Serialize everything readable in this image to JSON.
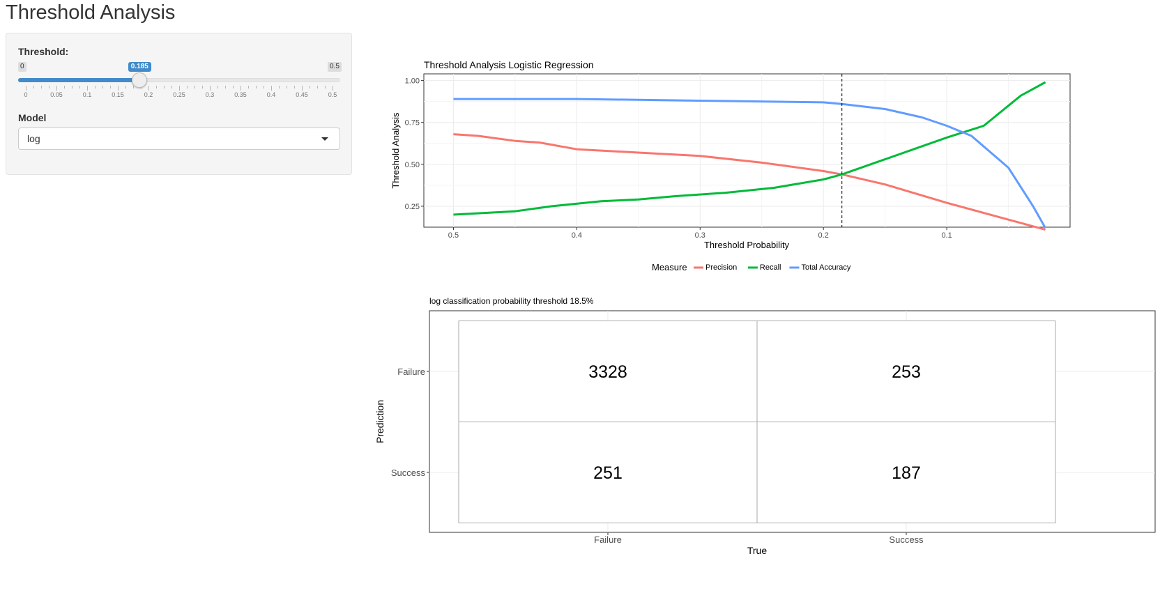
{
  "page": {
    "title": "Threshold Analysis"
  },
  "sidebar": {
    "threshold_label": "Threshold:",
    "slider": {
      "min_label": "0",
      "max_label": "0.5",
      "value_label": "0.185",
      "min": 0,
      "max": 0.5,
      "value": 0.185,
      "tick_labels": [
        "0",
        "0.05",
        "0.1",
        "0.15",
        "0.2",
        "0.25",
        "0.3",
        "0.35",
        "0.4",
        "0.45",
        "0.5"
      ]
    },
    "model_label": "Model",
    "model_value": "log"
  },
  "colors": {
    "precision": "#F8766D",
    "recall": "#00BA38",
    "accuracy": "#619CFF",
    "accent": "#428bca"
  },
  "chart_data": [
    {
      "type": "line",
      "title": "Threshold Analysis Logistic Regression",
      "xlabel": "Threshold Probability",
      "ylabel": "Threshold Analysis",
      "xlim": [
        0.524,
        0.0
      ],
      "ylim": [
        0.125,
        1.04
      ],
      "x_ticks": [
        "0.5",
        "0.4",
        "0.3",
        "0.2",
        "0.1"
      ],
      "y_ticks": [
        "0.25",
        "0.50",
        "0.75",
        "1.00"
      ],
      "vline": 0.185,
      "legend": {
        "title": "Measure",
        "position": "bottom"
      },
      "series": [
        {
          "name": "Precision",
          "x": [
            0.5,
            0.48,
            0.45,
            0.43,
            0.4,
            0.35,
            0.3,
            0.25,
            0.2,
            0.185,
            0.15,
            0.1,
            0.05,
            0.02
          ],
          "y": [
            0.68,
            0.67,
            0.64,
            0.63,
            0.59,
            0.57,
            0.55,
            0.51,
            0.46,
            0.44,
            0.38,
            0.27,
            0.17,
            0.11
          ]
        },
        {
          "name": "Recall",
          "x": [
            0.5,
            0.45,
            0.42,
            0.38,
            0.35,
            0.32,
            0.28,
            0.24,
            0.2,
            0.185,
            0.15,
            0.1,
            0.07,
            0.04,
            0.02
          ],
          "y": [
            0.2,
            0.22,
            0.25,
            0.28,
            0.29,
            0.31,
            0.33,
            0.36,
            0.41,
            0.44,
            0.53,
            0.66,
            0.73,
            0.91,
            0.99
          ]
        },
        {
          "name": "Total Accuracy",
          "x": [
            0.5,
            0.4,
            0.3,
            0.2,
            0.185,
            0.15,
            0.12,
            0.1,
            0.08,
            0.05,
            0.03,
            0.02
          ],
          "y": [
            0.89,
            0.89,
            0.88,
            0.87,
            0.86,
            0.83,
            0.78,
            0.73,
            0.67,
            0.48,
            0.25,
            0.12
          ]
        }
      ]
    },
    {
      "type": "heatmap",
      "title": "log classification probability threshold 18.5%",
      "xlabel": "True",
      "ylabel": "Prediction",
      "x_categories": [
        "Failure",
        "Success"
      ],
      "y_categories": [
        "Failure",
        "Success"
      ],
      "cells": [
        {
          "x": "Failure",
          "y": "Failure",
          "value": "3328"
        },
        {
          "x": "Success",
          "y": "Failure",
          "value": "253"
        },
        {
          "x": "Failure",
          "y": "Success",
          "value": "251"
        },
        {
          "x": "Success",
          "y": "Success",
          "value": "187"
        }
      ]
    }
  ]
}
